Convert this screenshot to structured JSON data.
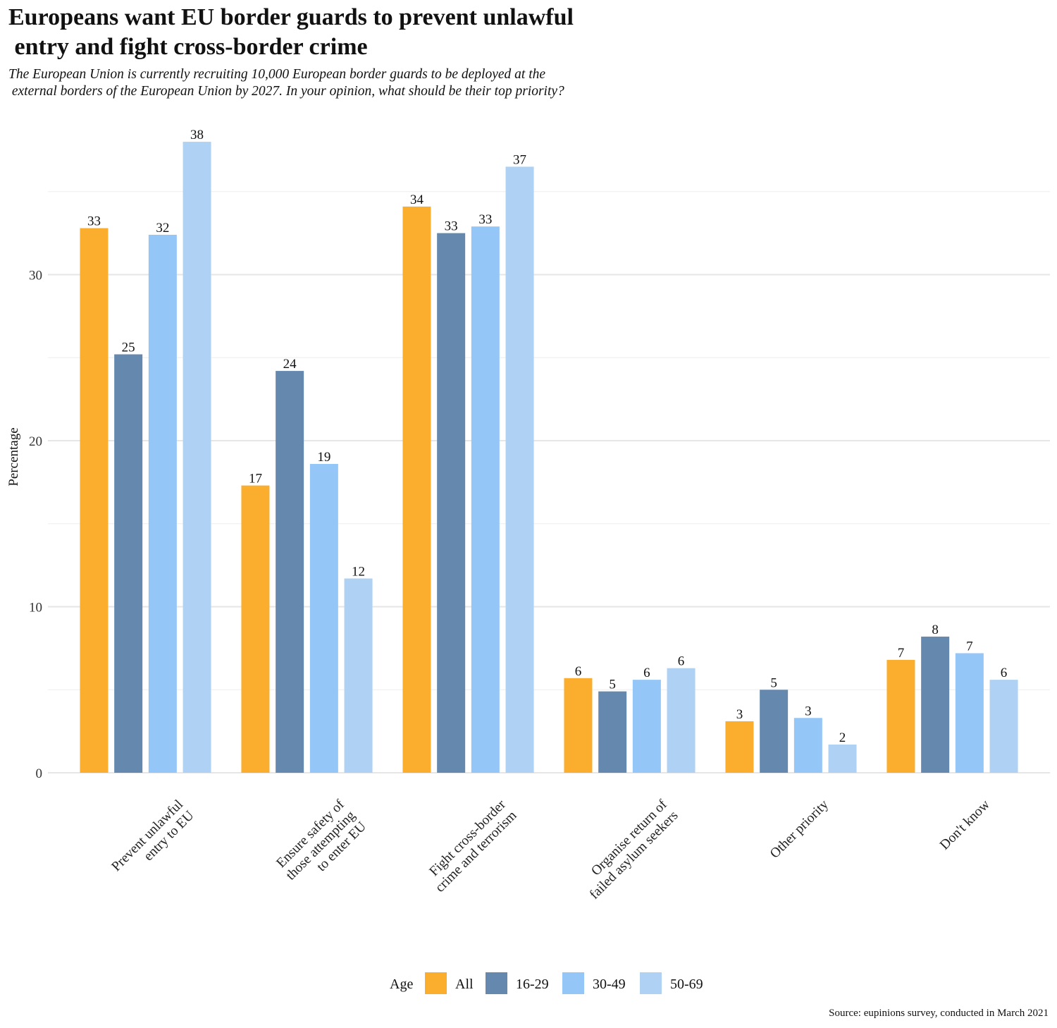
{
  "chart_data": {
    "type": "bar",
    "title": "Europeans want EU border guards to prevent unlawful\n entry and fight cross-border crime",
    "subtitle": "The European Union is currently recruiting 10,000 European border guards to be deployed at the\n external borders of the European Union by 2027. In your opinion, what should be their top priority?",
    "ylabel": "Percentage",
    "xlabel": "",
    "ylim": [
      0,
      40
    ],
    "yticks": [
      0,
      10,
      20,
      30
    ],
    "grid": true,
    "legend_title": "Age",
    "legend_position": "bottom",
    "categories": [
      [
        "Prevent unlawful",
        "entry to EU"
      ],
      [
        "Ensure safety of",
        "those attempting",
        "to enter EU"
      ],
      [
        "Fight cross-border",
        "crime and terrorism"
      ],
      [
        "Organise return of",
        "failed asylum seekers"
      ],
      [
        "Other priority"
      ],
      [
        "Don't know"
      ]
    ],
    "series": [
      {
        "name": "All",
        "color": "#FBAE2E",
        "values": [
          32.8,
          17.3,
          34.1,
          5.7,
          3.1,
          6.8
        ],
        "labels": [
          "33",
          "17",
          "34",
          "6",
          "3",
          "7"
        ]
      },
      {
        "name": "16-29",
        "color": "#6589AE",
        "values": [
          25.2,
          24.2,
          32.5,
          4.9,
          5.0,
          8.2
        ],
        "labels": [
          "25",
          "24",
          "33",
          "5",
          "5",
          "8"
        ]
      },
      {
        "name": "30-49",
        "color": "#94C6F8",
        "values": [
          32.4,
          18.6,
          32.9,
          5.6,
          3.3,
          7.2
        ],
        "labels": [
          "32",
          "19",
          "33",
          "6",
          "3",
          "7"
        ]
      },
      {
        "name": "50-69",
        "color": "#AFD2F4",
        "values": [
          38.0,
          11.7,
          36.5,
          6.3,
          1.7,
          5.6
        ],
        "labels": [
          "38",
          "12",
          "37",
          "6",
          "2",
          "6"
        ]
      }
    ]
  },
  "source": "Source: eupinions survey, conducted in March 2021"
}
